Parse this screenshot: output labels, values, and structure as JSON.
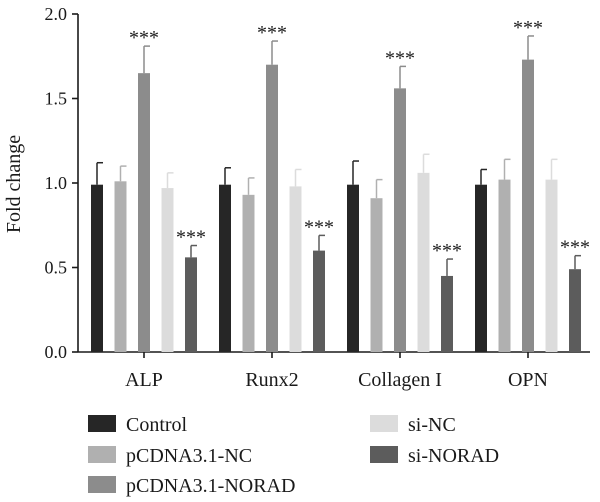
{
  "chart_data": {
    "type": "bar",
    "ylabel": "Fold change",
    "ylim": [
      0,
      2.0
    ],
    "yticks": [
      "0.0",
      "0.5",
      "1.0",
      "1.5",
      "2.0"
    ],
    "categories": [
      "ALP",
      "Runx2",
      "Collagen I",
      "OPN"
    ],
    "significance_label": "***",
    "legend_position": "bottom",
    "series": [
      {
        "name": "Control",
        "color": "#262626",
        "values": [
          0.99,
          0.99,
          0.99,
          0.99
        ],
        "errors": [
          0.13,
          0.1,
          0.14,
          0.09
        ],
        "significance": [
          false,
          false,
          false,
          false
        ]
      },
      {
        "name": "pCDNA3.1-NC",
        "color": "#b0b0b0",
        "values": [
          1.01,
          0.93,
          0.91,
          1.02
        ],
        "errors": [
          0.09,
          0.1,
          0.11,
          0.12
        ],
        "significance": [
          false,
          false,
          false,
          false
        ]
      },
      {
        "name": "pCDNA3.1-NORAD",
        "color": "#8c8c8c",
        "values": [
          1.65,
          1.7,
          1.56,
          1.73
        ],
        "errors": [
          0.16,
          0.14,
          0.13,
          0.14
        ],
        "significance": [
          true,
          true,
          true,
          true
        ]
      },
      {
        "name": "si-NC",
        "color": "#dcdcdc",
        "values": [
          0.97,
          0.98,
          1.06,
          1.02
        ],
        "errors": [
          0.09,
          0.1,
          0.11,
          0.12
        ],
        "significance": [
          false,
          false,
          false,
          false
        ]
      },
      {
        "name": "si-NORAD",
        "color": "#5c5c5c",
        "values": [
          0.56,
          0.6,
          0.45,
          0.49
        ],
        "errors": [
          0.07,
          0.09,
          0.1,
          0.08
        ],
        "significance": [
          true,
          true,
          true,
          true
        ]
      }
    ]
  }
}
